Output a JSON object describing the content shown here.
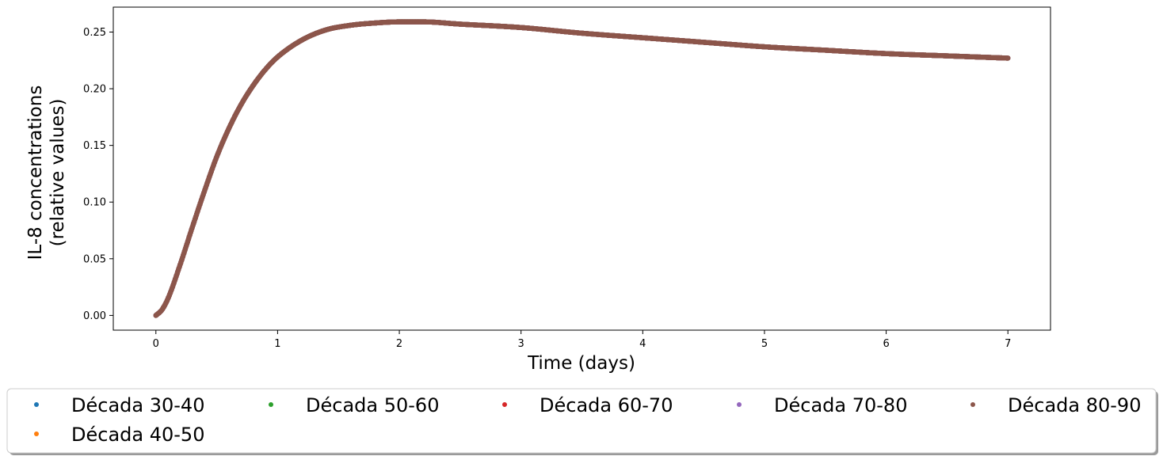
{
  "chart_data": {
    "type": "scatter",
    "title": "",
    "xlabel": "Time (days)",
    "ylabel_lines": [
      "IL-8 concentrations",
      "(relative values)"
    ],
    "xlim": [
      -0.35,
      7.35
    ],
    "ylim": [
      -0.013,
      0.272
    ],
    "xticks": [
      0,
      1,
      2,
      3,
      4,
      5,
      6,
      7
    ],
    "xtick_labels": [
      "0",
      "1",
      "2",
      "3",
      "4",
      "5",
      "6",
      "7"
    ],
    "yticks": [
      0.0,
      0.05,
      0.1,
      0.15,
      0.2,
      0.25
    ],
    "ytick_labels": [
      "0.00",
      "0.05",
      "0.10",
      "0.15",
      "0.20",
      "0.25"
    ],
    "grid": false,
    "legend_position": "below",
    "series": [
      {
        "name": "Década 30-40",
        "color": "#1f77b4",
        "x": [
          0,
          0.05,
          0.1,
          0.2,
          0.3,
          0.4,
          0.5,
          0.6,
          0.7,
          0.8,
          0.9,
          1.0,
          1.2,
          1.4,
          1.6,
          1.8,
          2.0,
          2.2,
          2.5,
          3.0,
          3.5,
          4.0,
          4.5,
          5.0,
          5.5,
          6.0,
          6.5,
          7.0
        ],
        "y": [
          0.0,
          0.005,
          0.015,
          0.045,
          0.078,
          0.11,
          0.14,
          0.165,
          0.186,
          0.203,
          0.217,
          0.228,
          0.243,
          0.252,
          0.256,
          0.258,
          0.259,
          0.259,
          0.257,
          0.254,
          0.249,
          0.245,
          0.241,
          0.237,
          0.234,
          0.231,
          0.229,
          0.227
        ]
      },
      {
        "name": "Década 40-50",
        "color": "#ff7f0e",
        "x": [
          0,
          0.05,
          0.1,
          0.2,
          0.3,
          0.4,
          0.5,
          0.6,
          0.7,
          0.8,
          0.9,
          1.0,
          1.2,
          1.4,
          1.6,
          1.8,
          2.0,
          2.2,
          2.5,
          3.0,
          3.5,
          4.0,
          4.5,
          5.0,
          5.5,
          6.0,
          6.5,
          7.0
        ],
        "y": [
          0.0,
          0.005,
          0.015,
          0.045,
          0.078,
          0.11,
          0.14,
          0.165,
          0.186,
          0.203,
          0.217,
          0.228,
          0.243,
          0.252,
          0.256,
          0.258,
          0.259,
          0.259,
          0.257,
          0.254,
          0.249,
          0.245,
          0.241,
          0.237,
          0.234,
          0.231,
          0.229,
          0.227
        ]
      },
      {
        "name": "Década 50-60",
        "color": "#2ca02c",
        "x": [
          0,
          0.05,
          0.1,
          0.2,
          0.3,
          0.4,
          0.5,
          0.6,
          0.7,
          0.8,
          0.9,
          1.0,
          1.2,
          1.4,
          1.6,
          1.8,
          2.0,
          2.2,
          2.5,
          3.0,
          3.5,
          4.0,
          4.5,
          5.0,
          5.5,
          6.0,
          6.5,
          7.0
        ],
        "y": [
          0.0,
          0.005,
          0.015,
          0.045,
          0.078,
          0.11,
          0.14,
          0.165,
          0.186,
          0.203,
          0.217,
          0.228,
          0.243,
          0.252,
          0.256,
          0.258,
          0.259,
          0.259,
          0.257,
          0.254,
          0.249,
          0.245,
          0.241,
          0.237,
          0.234,
          0.231,
          0.229,
          0.227
        ]
      },
      {
        "name": "Década 60-70",
        "color": "#d62728",
        "x": [
          0,
          0.05,
          0.1,
          0.2,
          0.3,
          0.4,
          0.5,
          0.6,
          0.7,
          0.8,
          0.9,
          1.0,
          1.2,
          1.4,
          1.6,
          1.8,
          2.0,
          2.2,
          2.5,
          3.0,
          3.5,
          4.0,
          4.5,
          5.0,
          5.5,
          6.0,
          6.5,
          7.0
        ],
        "y": [
          0.0,
          0.005,
          0.015,
          0.045,
          0.078,
          0.11,
          0.14,
          0.165,
          0.186,
          0.203,
          0.217,
          0.228,
          0.243,
          0.252,
          0.256,
          0.258,
          0.259,
          0.259,
          0.257,
          0.254,
          0.249,
          0.245,
          0.241,
          0.237,
          0.234,
          0.231,
          0.229,
          0.227
        ]
      },
      {
        "name": "Década 70-80",
        "color": "#9467bd",
        "x": [
          0,
          0.05,
          0.1,
          0.2,
          0.3,
          0.4,
          0.5,
          0.6,
          0.7,
          0.8,
          0.9,
          1.0,
          1.2,
          1.4,
          1.6,
          1.8,
          2.0,
          2.2,
          2.5,
          3.0,
          3.5,
          4.0,
          4.5,
          5.0,
          5.5,
          6.0,
          6.5,
          7.0
        ],
        "y": [
          0.0,
          0.005,
          0.015,
          0.045,
          0.078,
          0.11,
          0.14,
          0.165,
          0.186,
          0.203,
          0.217,
          0.228,
          0.243,
          0.252,
          0.256,
          0.258,
          0.259,
          0.259,
          0.257,
          0.254,
          0.249,
          0.245,
          0.241,
          0.237,
          0.234,
          0.231,
          0.229,
          0.227
        ]
      },
      {
        "name": "Década 80-90",
        "color": "#8c564b",
        "x": [
          0,
          0.05,
          0.1,
          0.2,
          0.3,
          0.4,
          0.5,
          0.6,
          0.7,
          0.8,
          0.9,
          1.0,
          1.2,
          1.4,
          1.6,
          1.8,
          2.0,
          2.2,
          2.5,
          3.0,
          3.5,
          4.0,
          4.5,
          5.0,
          5.5,
          6.0,
          6.5,
          7.0
        ],
        "y": [
          0.0,
          0.005,
          0.015,
          0.045,
          0.078,
          0.11,
          0.14,
          0.165,
          0.186,
          0.203,
          0.217,
          0.228,
          0.243,
          0.252,
          0.256,
          0.258,
          0.259,
          0.259,
          0.257,
          0.254,
          0.249,
          0.245,
          0.241,
          0.237,
          0.234,
          0.231,
          0.229,
          0.227
        ]
      }
    ]
  }
}
